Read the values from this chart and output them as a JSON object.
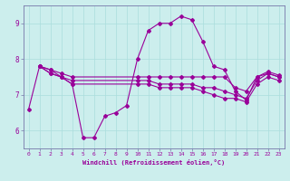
{
  "xlabel": "Windchill (Refroidissement éolien,°C)",
  "bg_color": "#cceeed",
  "line_color": "#990099",
  "grid_color": "#aadddd",
  "spine_color": "#7777aa",
  "xlim": [
    -0.5,
    23.5
  ],
  "ylim": [
    5.5,
    9.5
  ],
  "yticks": [
    6,
    7,
    8,
    9
  ],
  "xticks": [
    0,
    1,
    2,
    3,
    4,
    5,
    6,
    7,
    8,
    9,
    10,
    11,
    12,
    13,
    14,
    15,
    16,
    17,
    18,
    19,
    20,
    21,
    22,
    23
  ],
  "series": [
    {
      "x": [
        0,
        1,
        2,
        3,
        4,
        5,
        6,
        7,
        8,
        9,
        10,
        11,
        12,
        13,
        14,
        15,
        16,
        17,
        18,
        19,
        20,
        21,
        22,
        23
      ],
      "y": [
        6.6,
        7.8,
        7.7,
        7.5,
        7.3,
        5.8,
        5.8,
        6.4,
        6.5,
        6.7,
        8.0,
        8.8,
        9.0,
        9.0,
        9.2,
        9.1,
        8.5,
        7.8,
        7.7,
        7.1,
        6.85,
        7.5,
        7.65,
        7.55
      ]
    },
    {
      "x": [
        1,
        2,
        3,
        4,
        10,
        11,
        12,
        13,
        14,
        15,
        16,
        17,
        18,
        19,
        20,
        21,
        22,
        23
      ],
      "y": [
        7.8,
        7.7,
        7.6,
        7.5,
        7.5,
        7.5,
        7.5,
        7.5,
        7.5,
        7.5,
        7.5,
        7.5,
        7.5,
        7.2,
        7.1,
        7.5,
        7.6,
        7.5
      ]
    },
    {
      "x": [
        1,
        2,
        3,
        4,
        10,
        11,
        12,
        13,
        14,
        15,
        16,
        17,
        18,
        19,
        20,
        21,
        22,
        23
      ],
      "y": [
        7.8,
        7.6,
        7.5,
        7.4,
        7.4,
        7.4,
        7.3,
        7.3,
        7.3,
        7.3,
        7.2,
        7.2,
        7.1,
        7.0,
        6.9,
        7.4,
        7.6,
        7.5
      ]
    },
    {
      "x": [
        1,
        2,
        3,
        4,
        10,
        11,
        12,
        13,
        14,
        15,
        16,
        17,
        18,
        19,
        20,
        21,
        22,
        23
      ],
      "y": [
        7.8,
        7.6,
        7.5,
        7.3,
        7.3,
        7.3,
        7.2,
        7.2,
        7.2,
        7.2,
        7.1,
        7.0,
        6.9,
        6.9,
        6.8,
        7.3,
        7.5,
        7.4
      ]
    }
  ]
}
